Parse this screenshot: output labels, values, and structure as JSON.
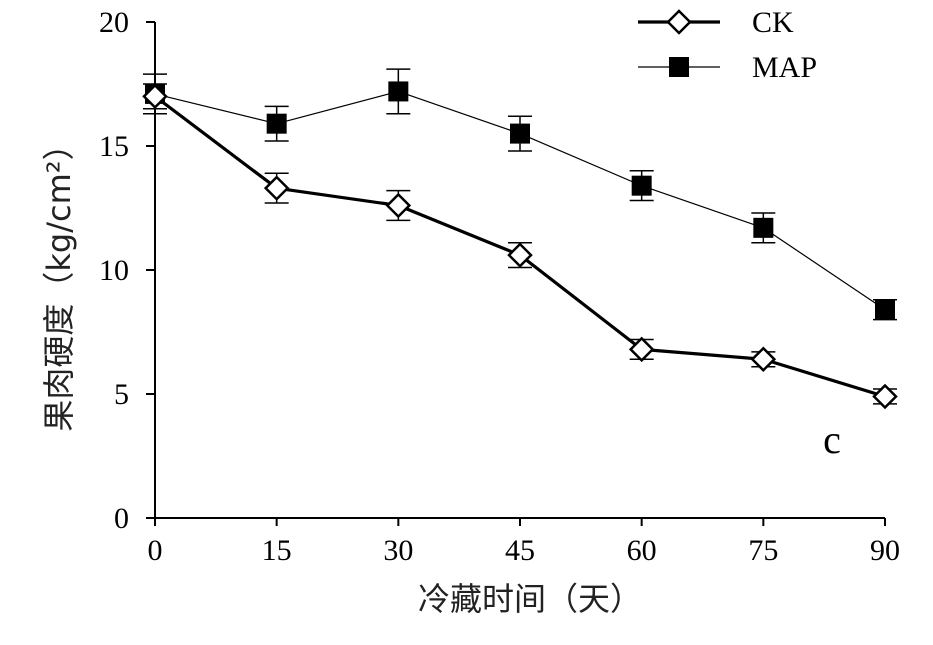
{
  "chart_data": {
    "type": "line",
    "xlabel": "冷藏时间（天）",
    "ylabel": "果肉硬度（kg/cm²）",
    "x": [
      0,
      15,
      30,
      45,
      60,
      75,
      90
    ],
    "xlim": [
      0,
      90
    ],
    "ylim": [
      0,
      20
    ],
    "xticks": [
      "0",
      "15",
      "30",
      "45",
      "60",
      "75",
      "90"
    ],
    "yticks": [
      "0",
      "5",
      "10",
      "15",
      "20"
    ],
    "grid": false,
    "legend_position": "top-right",
    "annotation": "c",
    "series": [
      {
        "name": "CK",
        "marker": "diamond-open",
        "values": [
          17.0,
          13.3,
          12.6,
          10.6,
          6.8,
          6.4,
          4.9
        ],
        "errors": [
          0.5,
          0.6,
          0.6,
          0.5,
          0.4,
          0.3,
          0.3
        ]
      },
      {
        "name": "MAP",
        "marker": "square-filled",
        "values": [
          17.1,
          15.9,
          17.2,
          15.5,
          13.4,
          11.7,
          8.4
        ],
        "errors": [
          0.8,
          0.7,
          0.9,
          0.7,
          0.6,
          0.6,
          0.4
        ]
      }
    ]
  }
}
